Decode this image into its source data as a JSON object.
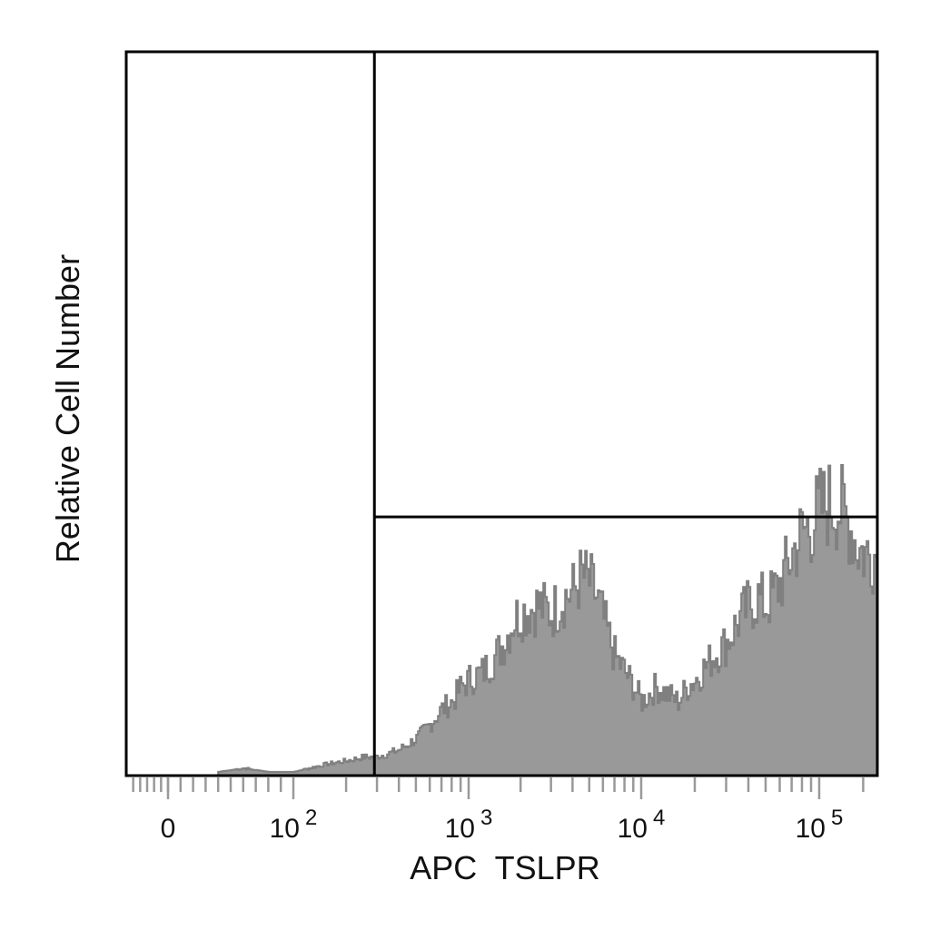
{
  "chart_data": {
    "type": "area",
    "title": "",
    "xlabel": "APC  TSLPR",
    "ylabel": "Relative Cell Number",
    "x_scale": "biexponential",
    "x_ticks": [
      {
        "value": 0,
        "label": "0",
        "base": "",
        "exp": ""
      },
      {
        "value": 100,
        "label": "10^2",
        "base": "10",
        "exp": "2"
      },
      {
        "value": 1000,
        "label": "10^3",
        "base": "10",
        "exp": "3"
      },
      {
        "value": 10000,
        "label": "10^4",
        "base": "10",
        "exp": "4"
      },
      {
        "value": 100000,
        "label": "10^5",
        "base": "10",
        "exp": "5"
      }
    ],
    "xlim": [
      -60,
      250000
    ],
    "ylim": [
      0,
      100
    ],
    "y_tick_labels": false,
    "grid": false,
    "fill_color": "#999999",
    "edge_color": "#808080",
    "gate": {
      "x_threshold": 290,
      "y_level": 35,
      "color": "#000000"
    },
    "series": [
      {
        "x": [
          40,
          60,
          80,
          100,
          150,
          200,
          250,
          290,
          350,
          400,
          500,
          600,
          700,
          800,
          900,
          1000,
          1200,
          1400,
          1600,
          1800,
          2000,
          2500,
          3000,
          3500,
          4000,
          4500,
          5000,
          5500,
          6000,
          7000,
          8000,
          9000,
          10000,
          11000,
          12000,
          14000,
          16000,
          18000,
          20000,
          25000,
          30000,
          35000,
          40000,
          45000,
          50000,
          60000,
          70000,
          80000,
          90000,
          100000,
          120000,
          140000,
          160000,
          180000,
          200000,
          230000
        ],
        "y": [
          0.5,
          1,
          0.5,
          0.5,
          1.5,
          2,
          2.5,
          2.5,
          3,
          3.5,
          5,
          7,
          9,
          10,
          12,
          13,
          14,
          16,
          18,
          21,
          22,
          23,
          22,
          24,
          25,
          27,
          26,
          24,
          21,
          16,
          14,
          12,
          10,
          11,
          12,
          11,
          10,
          12,
          13,
          16,
          18,
          21,
          23,
          24,
          23,
          26,
          30,
          33,
          34,
          36,
          37,
          36,
          34,
          31,
          30,
          30
        ]
      }
    ]
  }
}
